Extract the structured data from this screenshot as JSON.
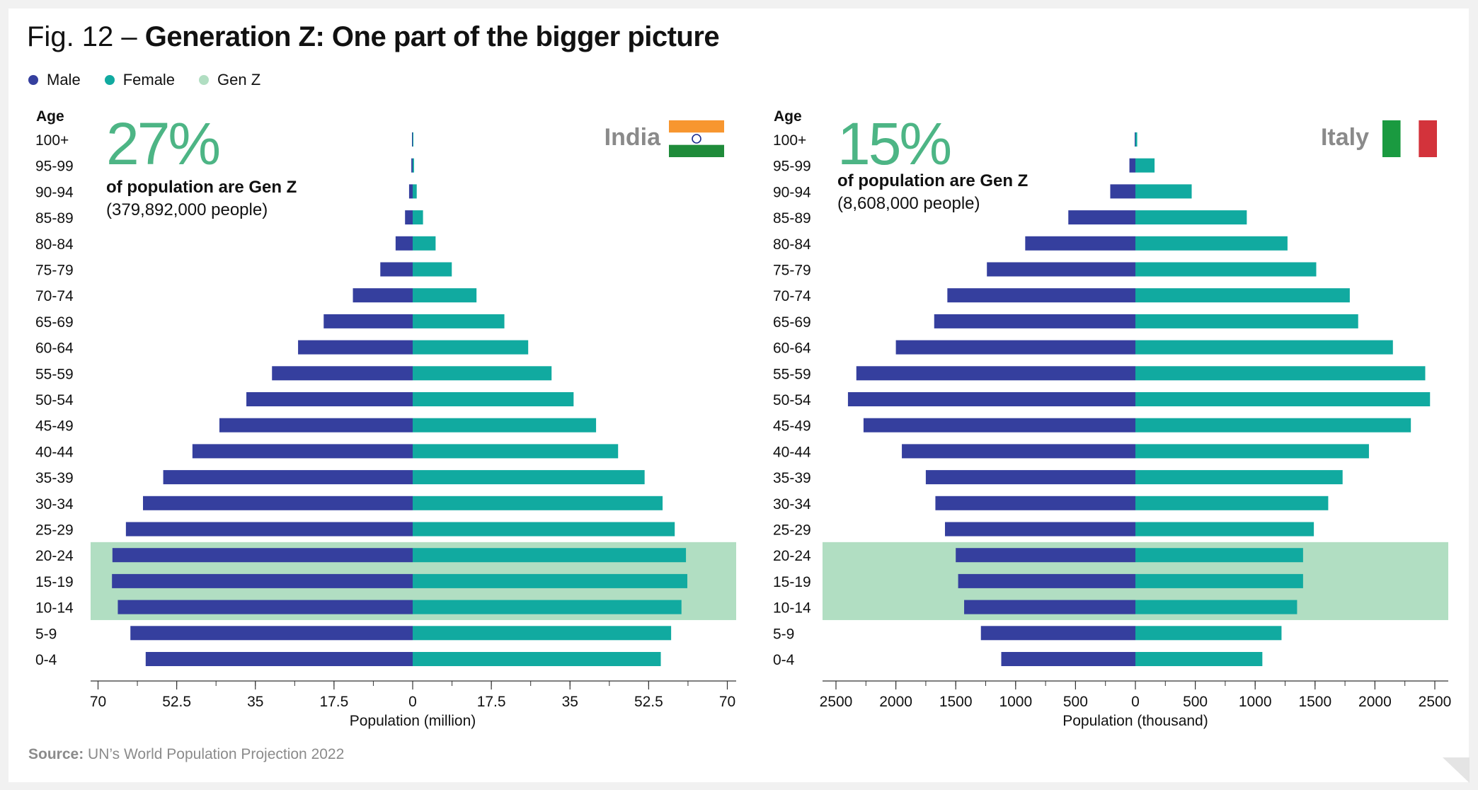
{
  "figure": {
    "title_prefix": "Fig. 12 –",
    "title_main": "Generation Z: One part of the bigger picture",
    "source_label": "Source:",
    "source_text": "UN’s World Population Projection 2022"
  },
  "legend": [
    {
      "label": "Male",
      "color": "#353f9e"
    },
    {
      "label": "Female",
      "color": "#11aaa0"
    },
    {
      "label": "Gen Z",
      "color": "#b1dec2"
    }
  ],
  "chart_data": [
    {
      "type": "bar",
      "orientation": "horizontal-pyramid",
      "country": "India",
      "stat_value": "27%",
      "stat_label": "of population are Gen Z",
      "stat_people": "(379,892,000 people)",
      "age_axis_title": "Age",
      "xlabel": "Population (million)",
      "xlim": [
        -70,
        70
      ],
      "x_ticks": [
        -70,
        -52.5,
        -35,
        -17.5,
        0,
        17.5,
        35,
        52.5,
        70
      ],
      "x_tick_labels": [
        "70",
        "52.5",
        "35",
        "17.5",
        "0",
        "17.5",
        "35",
        "52.5",
        "70"
      ],
      "categories": [
        "100+",
        "95-99",
        "90-94",
        "85-89",
        "80-84",
        "75-79",
        "70-74",
        "65-69",
        "60-64",
        "55-59",
        "50-54",
        "45-49",
        "40-44",
        "35-39",
        "30-34",
        "25-29",
        "20-24",
        "15-19",
        "10-14",
        "5-9",
        "0-4"
      ],
      "genz_categories": [
        "20-24",
        "15-19",
        "10-14"
      ],
      "series": [
        {
          "name": "Male",
          "values": [
            0.05,
            0.3,
            0.8,
            1.7,
            3.8,
            7.2,
            13.3,
            19.8,
            25.5,
            31.3,
            37,
            43,
            49,
            55.5,
            60,
            63.8,
            66.8,
            66.9,
            65.6,
            62.8,
            59.4
          ]
        },
        {
          "name": "Female",
          "values": [
            0.05,
            0.3,
            0.9,
            2.3,
            5.1,
            8.7,
            14.2,
            20.4,
            25.7,
            30.9,
            35.8,
            40.8,
            45.7,
            51.6,
            55.6,
            58.3,
            60.8,
            61.1,
            59.8,
            57.5,
            55.2
          ]
        }
      ]
    },
    {
      "type": "bar",
      "orientation": "horizontal-pyramid",
      "country": "Italy",
      "stat_value": "15%",
      "stat_label": "of population are Gen Z",
      "stat_people": "(8,608,000 people)",
      "age_axis_title": "Age",
      "xlabel": "Population (thousand)",
      "xlim": [
        -2600,
        2600
      ],
      "x_ticks": [
        -2500,
        -2000,
        -1500,
        -1000,
        -500,
        0,
        500,
        1000,
        1500,
        2000,
        2500
      ],
      "x_tick_labels": [
        "2500",
        "2000",
        "1500",
        "1000",
        "500",
        "0",
        "500",
        "1000",
        "1500",
        "2000",
        "2500"
      ],
      "categories": [
        "100+",
        "95-99",
        "90-94",
        "85-89",
        "80-84",
        "75-79",
        "70-74",
        "65-69",
        "60-64",
        "55-59",
        "50-54",
        "45-49",
        "40-44",
        "35-39",
        "30-34",
        "25-29",
        "20-24",
        "15-19",
        "10-14",
        "5-9",
        "0-4"
      ],
      "genz_categories": [
        "20-24",
        "15-19",
        "10-14"
      ],
      "series": [
        {
          "name": "Male",
          "values": [
            3,
            50,
            210,
            560,
            920,
            1240,
            1570,
            1680,
            2000,
            2330,
            2400,
            2270,
            1950,
            1750,
            1670,
            1590,
            1500,
            1480,
            1430,
            1290,
            1120
          ]
        },
        {
          "name": "Female",
          "values": [
            15,
            160,
            470,
            930,
            1270,
            1510,
            1790,
            1860,
            2150,
            2420,
            2460,
            2300,
            1950,
            1730,
            1610,
            1490,
            1400,
            1400,
            1350,
            1220,
            1060
          ]
        }
      ]
    }
  ]
}
